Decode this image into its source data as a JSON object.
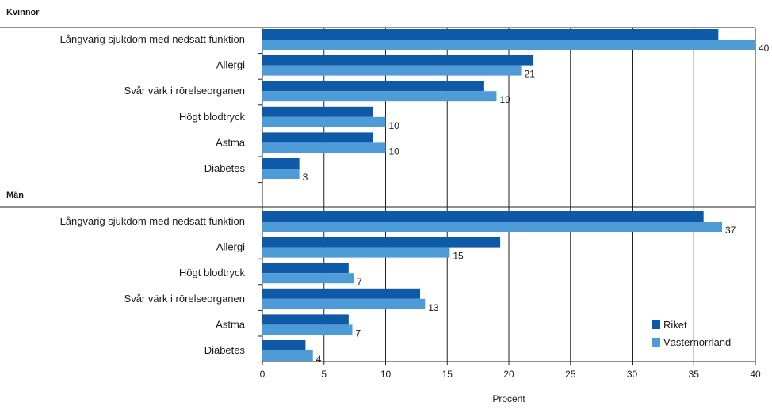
{
  "chart_data": {
    "type": "bar",
    "orientation": "horizontal",
    "xlabel": "Procent",
    "xlim": [
      0,
      40
    ],
    "xticks": [
      0,
      5,
      10,
      15,
      20,
      25,
      30,
      35,
      40
    ],
    "grid": "vertical",
    "legend": {
      "placement": "bottom-right",
      "entries": [
        "Riket",
        "Västernorrland"
      ]
    },
    "colors": {
      "Riket": "#0e5aa7",
      "Västernorrland": "#4f9bd8"
    },
    "groups": [
      {
        "name": "Kvinnor",
        "categories": [
          "Långvarig sjukdom med nedsatt funktion",
          "Allergi",
          "Svår värk i rörelseorganen",
          "Högt blodtryck",
          "Astma",
          "Diabetes"
        ],
        "series": [
          {
            "name": "Riket",
            "values": [
              37,
              22,
              18,
              9,
              9,
              3
            ]
          },
          {
            "name": "Västernorrland",
            "values": [
              40,
              21,
              19,
              10,
              10,
              3
            ]
          }
        ],
        "data_labels": [
          "40",
          "21",
          "19",
          "10",
          "10",
          "3"
        ]
      },
      {
        "name": "Män",
        "categories": [
          "Långvarig sjukdom med nedsatt funktion",
          "Allergi",
          "Högt blodtryck",
          "Svår värk i rörelseorganen",
          "Astma",
          "Diabetes"
        ],
        "series": [
          {
            "name": "Riket",
            "values": [
              35.8,
              19.3,
              7,
              12.8,
              7,
              3.5
            ]
          },
          {
            "name": "Västernorrland",
            "values": [
              37.3,
              15.2,
              7.4,
              13.2,
              7.3,
              4.1
            ]
          }
        ],
        "data_labels": [
          "37",
          "15",
          "7",
          "13",
          "7",
          "4"
        ]
      }
    ]
  }
}
